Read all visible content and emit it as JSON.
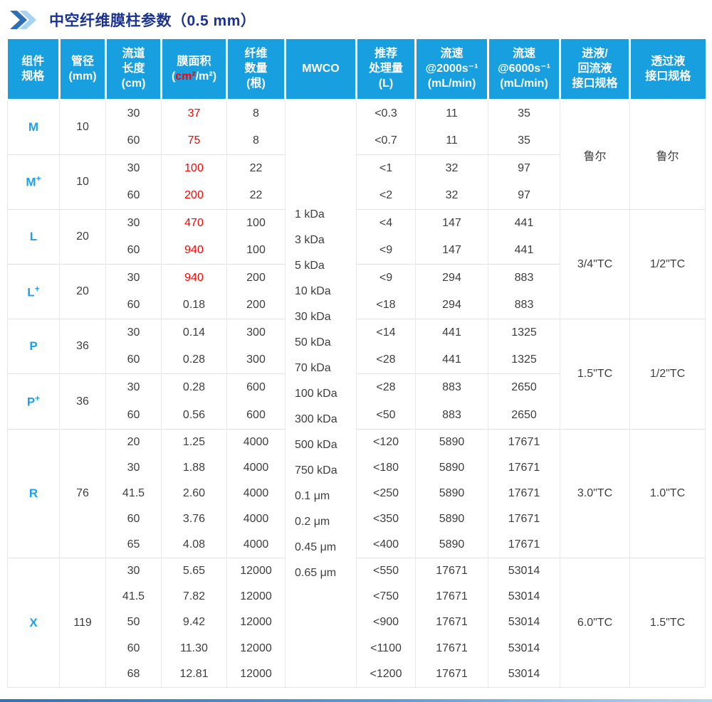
{
  "title": {
    "text": "中空纤维膜柱参数（0.5 mm）"
  },
  "colors": {
    "header_bg": "#189fdf",
    "component_blue": "#1ba0f2",
    "highlight_red": "#ff0000",
    "title_navy": "#1a338f",
    "chevron_dark": "#2e6eb6",
    "chevron_light": "#a7d2f2",
    "grid_line": "#e9e9e9"
  },
  "table": {
    "columns": [
      {
        "id": "component",
        "lines": [
          "组件",
          "规格"
        ]
      },
      {
        "id": "diameter",
        "lines": [
          "管径",
          "(mm)"
        ]
      },
      {
        "id": "channel-length",
        "lines": [
          "流道",
          "长度",
          "(cm)"
        ]
      },
      {
        "id": "membrane-area",
        "lines": [
          "膜面积"
        ],
        "unit": {
          "open": "(",
          "red": "cm²",
          "rest": "/m²)"
        }
      },
      {
        "id": "fiber-count",
        "lines": [
          "纤维",
          "数量",
          "(根)"
        ]
      },
      {
        "id": "mwco",
        "lines": [
          "MWCO"
        ]
      },
      {
        "id": "volume",
        "lines": [
          "推荐",
          "处理量",
          "(L)"
        ]
      },
      {
        "id": "flow-2000",
        "lines": [
          "流速",
          "@2000s⁻¹",
          "(mL/min)"
        ]
      },
      {
        "id": "flow-6000",
        "lines": [
          "流速",
          "@6000s⁻¹",
          "(mL/min)"
        ]
      },
      {
        "id": "inlet",
        "lines": [
          "进液/",
          "回流液",
          "接口规格"
        ]
      },
      {
        "id": "permeate",
        "lines": [
          "透过液",
          "接口规格"
        ]
      }
    ],
    "mwco_values": [
      "1 kDa",
      "3 kDa",
      "5 kDa",
      "10 kDa",
      "30 kDa",
      "50 kDa",
      "70 kDa",
      "100 kDa",
      "300 kDa",
      "500 kDa",
      "750 kDa",
      "0.1 μm",
      "0.2 μm",
      "0.45 μm",
      "0.65 μm"
    ],
    "groups": [
      {
        "component": "M",
        "sup": "",
        "diameter": "10",
        "rows": [
          {
            "length": "30",
            "area": "37",
            "area_red": true,
            "fibers": "8",
            "volume": "<0.3",
            "flow_2000": "11",
            "flow_6000": "35"
          },
          {
            "length": "60",
            "area": "75",
            "area_red": true,
            "fibers": "8",
            "volume": "<0.7",
            "flow_2000": "11",
            "flow_6000": "35"
          }
        ],
        "interface": {
          "span": 4,
          "inlet": "鲁尔",
          "permeate": "鲁尔"
        }
      },
      {
        "component": "M",
        "sup": "+",
        "diameter": "10",
        "rows": [
          {
            "length": "30",
            "area": "100",
            "area_red": true,
            "fibers": "22",
            "volume": "<1",
            "flow_2000": "32",
            "flow_6000": "97"
          },
          {
            "length": "60",
            "area": "200",
            "area_red": true,
            "fibers": "22",
            "volume": "<2",
            "flow_2000": "32",
            "flow_6000": "97"
          }
        ]
      },
      {
        "component": "L",
        "sup": "",
        "diameter": "20",
        "rows": [
          {
            "length": "30",
            "area": "470",
            "area_red": true,
            "fibers": "100",
            "volume": "<4",
            "flow_2000": "147",
            "flow_6000": "441"
          },
          {
            "length": "60",
            "area": "940",
            "area_red": true,
            "fibers": "100",
            "volume": "<9",
            "flow_2000": "147",
            "flow_6000": "441"
          }
        ],
        "interface": {
          "span": 4,
          "inlet": "3/4\"TC",
          "permeate": "1/2\"TC"
        }
      },
      {
        "component": "L",
        "sup": "+",
        "diameter": "20",
        "rows": [
          {
            "length": "30",
            "area": "940",
            "area_red": true,
            "fibers": "200",
            "volume": "<9",
            "flow_2000": "294",
            "flow_6000": "883"
          },
          {
            "length": "60",
            "area": "0.18",
            "area_red": false,
            "fibers": "200",
            "volume": "<18",
            "flow_2000": "294",
            "flow_6000": "883"
          }
        ]
      },
      {
        "component": "P",
        "sup": "",
        "diameter": "36",
        "rows": [
          {
            "length": "30",
            "area": "0.14",
            "area_red": false,
            "fibers": "300",
            "volume": "<14",
            "flow_2000": "441",
            "flow_6000": "1325"
          },
          {
            "length": "60",
            "area": "0.28",
            "area_red": false,
            "fibers": "300",
            "volume": "<28",
            "flow_2000": "441",
            "flow_6000": "1325"
          }
        ],
        "interface": {
          "span": 4,
          "inlet": "1.5\"TC",
          "permeate": "1/2\"TC"
        }
      },
      {
        "component": "P",
        "sup": "+",
        "diameter": "36",
        "rows": [
          {
            "length": "30",
            "area": "0.28",
            "area_red": false,
            "fibers": "600",
            "volume": "<28",
            "flow_2000": "883",
            "flow_6000": "2650"
          },
          {
            "length": "60",
            "area": "0.56",
            "area_red": false,
            "fibers": "600",
            "volume": "<50",
            "flow_2000": "883",
            "flow_6000": "2650"
          }
        ]
      },
      {
        "component": "R",
        "sup": "",
        "diameter": "76",
        "rows": [
          {
            "length": "20",
            "area": "1.25",
            "area_red": false,
            "fibers": "4000",
            "volume": "<120",
            "flow_2000": "5890",
            "flow_6000": "17671"
          },
          {
            "length": "30",
            "area": "1.88",
            "area_red": false,
            "fibers": "4000",
            "volume": "<180",
            "flow_2000": "5890",
            "flow_6000": "17671"
          },
          {
            "length": "41.5",
            "area": "2.60",
            "area_red": false,
            "fibers": "4000",
            "volume": "<250",
            "flow_2000": "5890",
            "flow_6000": "17671"
          },
          {
            "length": "60",
            "area": "3.76",
            "area_red": false,
            "fibers": "4000",
            "volume": "<350",
            "flow_2000": "5890",
            "flow_6000": "17671"
          },
          {
            "length": "65",
            "area": "4.08",
            "area_red": false,
            "fibers": "4000",
            "volume": "<400",
            "flow_2000": "5890",
            "flow_6000": "17671"
          }
        ],
        "interface": {
          "span": 5,
          "inlet": "3.0\"TC",
          "permeate": "1.0\"TC"
        }
      },
      {
        "component": "X",
        "sup": "",
        "diameter": "119",
        "rows": [
          {
            "length": "30",
            "area": "5.65",
            "area_red": false,
            "fibers": "12000",
            "volume": "<550",
            "flow_2000": "17671",
            "flow_6000": "53014"
          },
          {
            "length": "41.5",
            "area": "7.82",
            "area_red": false,
            "fibers": "12000",
            "volume": "<750",
            "flow_2000": "17671",
            "flow_6000": "53014"
          },
          {
            "length": "50",
            "area": "9.42",
            "area_red": false,
            "fibers": "12000",
            "volume": "<900",
            "flow_2000": "17671",
            "flow_6000": "53014"
          },
          {
            "length": "60",
            "area": "11.30",
            "area_red": false,
            "fibers": "12000",
            "volume": "<1100",
            "flow_2000": "17671",
            "flow_6000": "53014"
          },
          {
            "length": "68",
            "area": "12.81",
            "area_red": false,
            "fibers": "12000",
            "volume": "<1200",
            "flow_2000": "17671",
            "flow_6000": "53014"
          }
        ],
        "interface": {
          "span": 5,
          "inlet": "6.0\"TC",
          "permeate": "1.5\"TC"
        }
      }
    ]
  }
}
